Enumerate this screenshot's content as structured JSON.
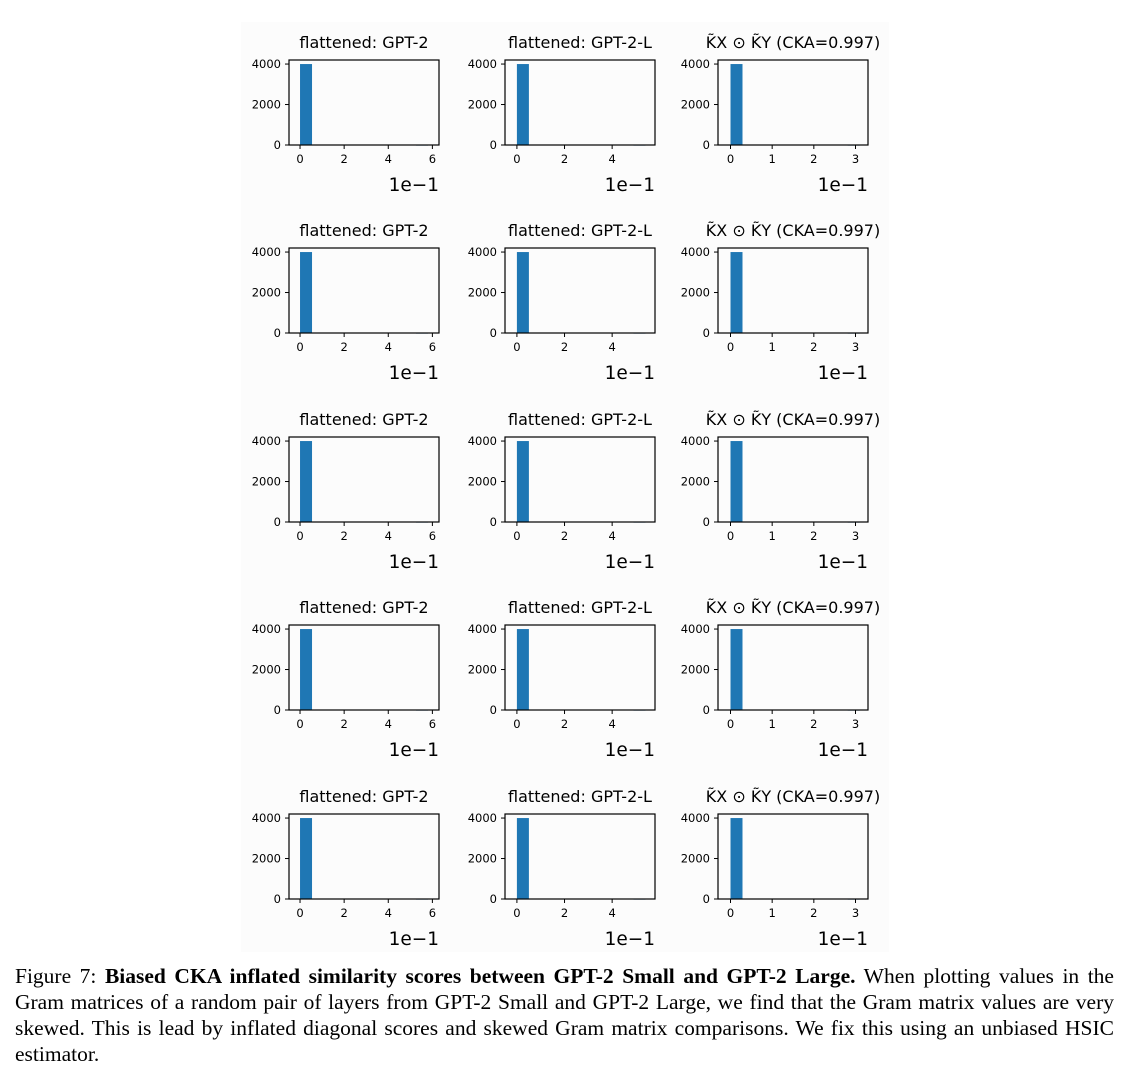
{
  "chart_data": [
    {
      "type": "bar",
      "title": "flattened: GPT-2",
      "categories": [
        "0",
        "0.58"
      ],
      "values": [
        4000,
        20
      ],
      "xticks": [
        "0",
        "2",
        "4",
        "6"
      ],
      "yticks": [
        "0",
        "2000",
        "4000"
      ],
      "offset_label": "1e−1",
      "xlim": [
        -0.05,
        0.63
      ],
      "ylim": [
        0,
        4200
      ]
    },
    {
      "type": "bar",
      "title": "flattened: GPT-2-L",
      "categories": [
        "0",
        "0.54"
      ],
      "values": [
        4000,
        20
      ],
      "xticks": [
        "0",
        "2",
        "4"
      ],
      "yticks": [
        "0",
        "2000",
        "4000"
      ],
      "offset_label": "1e−1",
      "xlim": [
        -0.05,
        0.58
      ],
      "ylim": [
        0,
        4200
      ]
    },
    {
      "type": "bar",
      "title": "K̃X ⊙ K̃Y (CKA=0.997)",
      "categories": [
        "0",
        "0.31"
      ],
      "values": [
        4000,
        20
      ],
      "xticks": [
        "0",
        "1",
        "2",
        "3"
      ],
      "yticks": [
        "0",
        "2000",
        "4000"
      ],
      "offset_label": "1e−1",
      "xlim": [
        -0.03,
        0.33
      ],
      "ylim": [
        0,
        4200
      ]
    },
    {
      "type": "bar",
      "title": "flattened: GPT-2",
      "categories": [
        "0",
        "0.58"
      ],
      "values": [
        4000,
        20
      ],
      "xticks": [
        "0",
        "2",
        "4",
        "6"
      ],
      "yticks": [
        "0",
        "2000",
        "4000"
      ],
      "offset_label": "1e−1",
      "xlim": [
        -0.05,
        0.63
      ],
      "ylim": [
        0,
        4200
      ]
    },
    {
      "type": "bar",
      "title": "flattened: GPT-2-L",
      "categories": [
        "0",
        "0.54"
      ],
      "values": [
        4000,
        20
      ],
      "xticks": [
        "0",
        "2",
        "4"
      ],
      "yticks": [
        "0",
        "2000",
        "4000"
      ],
      "offset_label": "1e−1",
      "xlim": [
        -0.05,
        0.58
      ],
      "ylim": [
        0,
        4200
      ]
    },
    {
      "type": "bar",
      "title": "K̃X ⊙ K̃Y (CKA=0.997)",
      "categories": [
        "0",
        "0.31"
      ],
      "values": [
        4000,
        20
      ],
      "xticks": [
        "0",
        "1",
        "2",
        "3"
      ],
      "yticks": [
        "0",
        "2000",
        "4000"
      ],
      "offset_label": "1e−1",
      "xlim": [
        -0.03,
        0.33
      ],
      "ylim": [
        0,
        4200
      ]
    },
    {
      "type": "bar",
      "title": "flattened: GPT-2",
      "categories": [
        "0",
        "0.58"
      ],
      "values": [
        4000,
        20
      ],
      "xticks": [
        "0",
        "2",
        "4",
        "6"
      ],
      "yticks": [
        "0",
        "2000",
        "4000"
      ],
      "offset_label": "1e−1",
      "xlim": [
        -0.05,
        0.63
      ],
      "ylim": [
        0,
        4200
      ]
    },
    {
      "type": "bar",
      "title": "flattened: GPT-2-L",
      "categories": [
        "0",
        "0.54"
      ],
      "values": [
        4000,
        20
      ],
      "xticks": [
        "0",
        "2",
        "4"
      ],
      "yticks": [
        "0",
        "2000",
        "4000"
      ],
      "offset_label": "1e−1",
      "xlim": [
        -0.05,
        0.58
      ],
      "ylim": [
        0,
        4200
      ]
    },
    {
      "type": "bar",
      "title": "K̃X ⊙ K̃Y (CKA=0.997)",
      "categories": [
        "0",
        "0.31"
      ],
      "values": [
        4000,
        20
      ],
      "xticks": [
        "0",
        "1",
        "2",
        "3"
      ],
      "yticks": [
        "0",
        "2000",
        "4000"
      ],
      "offset_label": "1e−1",
      "xlim": [
        -0.03,
        0.33
      ],
      "ylim": [
        0,
        4200
      ]
    },
    {
      "type": "bar",
      "title": "flattened: GPT-2",
      "categories": [
        "0",
        "0.58"
      ],
      "values": [
        4000,
        20
      ],
      "xticks": [
        "0",
        "2",
        "4",
        "6"
      ],
      "yticks": [
        "0",
        "2000",
        "4000"
      ],
      "offset_label": "1e−1",
      "xlim": [
        -0.05,
        0.63
      ],
      "ylim": [
        0,
        4200
      ]
    },
    {
      "type": "bar",
      "title": "flattened: GPT-2-L",
      "categories": [
        "0",
        "0.54"
      ],
      "values": [
        4000,
        20
      ],
      "xticks": [
        "0",
        "2",
        "4"
      ],
      "yticks": [
        "0",
        "2000",
        "4000"
      ],
      "offset_label": "1e−1",
      "xlim": [
        -0.05,
        0.58
      ],
      "ylim": [
        0,
        4200
      ]
    },
    {
      "type": "bar",
      "title": "K̃X ⊙ K̃Y (CKA=0.997)",
      "categories": [
        "0",
        "0.31"
      ],
      "values": [
        4000,
        20
      ],
      "xticks": [
        "0",
        "1",
        "2",
        "3"
      ],
      "yticks": [
        "0",
        "2000",
        "4000"
      ],
      "offset_label": "1e−1",
      "xlim": [
        -0.03,
        0.33
      ],
      "ylim": [
        0,
        4200
      ]
    },
    {
      "type": "bar",
      "title": "flattened: GPT-2",
      "categories": [
        "0",
        "0.58"
      ],
      "values": [
        4000,
        20
      ],
      "xticks": [
        "0",
        "2",
        "4",
        "6"
      ],
      "yticks": [
        "0",
        "2000",
        "4000"
      ],
      "offset_label": "1e−1",
      "xlim": [
        -0.05,
        0.63
      ],
      "ylim": [
        0,
        4200
      ]
    },
    {
      "type": "bar",
      "title": "flattened: GPT-2-L",
      "categories": [
        "0",
        "0.54"
      ],
      "values": [
        4000,
        20
      ],
      "xticks": [
        "0",
        "2",
        "4"
      ],
      "yticks": [
        "0",
        "2000",
        "4000"
      ],
      "offset_label": "1e−1",
      "xlim": [
        -0.05,
        0.58
      ],
      "ylim": [
        0,
        4200
      ]
    },
    {
      "type": "bar",
      "title": "K̃X ⊙ K̃Y (CKA=0.997)",
      "categories": [
        "0",
        "0.31"
      ],
      "values": [
        4000,
        20
      ],
      "xticks": [
        "0",
        "1",
        "2",
        "3"
      ],
      "yticks": [
        "0",
        "2000",
        "4000"
      ],
      "offset_label": "1e−1",
      "xlim": [
        -0.03,
        0.33
      ],
      "ylim": [
        0,
        4200
      ]
    }
  ],
  "colors": {
    "bar": "#1f77b4",
    "axes": "#000000",
    "background": "#fcfcfc"
  },
  "caption": {
    "label": "Figure 7:",
    "bold": "Biased CKA inflated similarity scores between GPT-2 Small and GPT-2 Large.",
    "text": "When plotting values in the Gram matrices of a random pair of layers from GPT-2 Small and GPT-2 Large, we find that the Gram matrix values are very skewed. This is lead by inflated diagonal scores and skewed Gram matrix comparisons. We fix this using an unbiased HSIC estimator."
  }
}
